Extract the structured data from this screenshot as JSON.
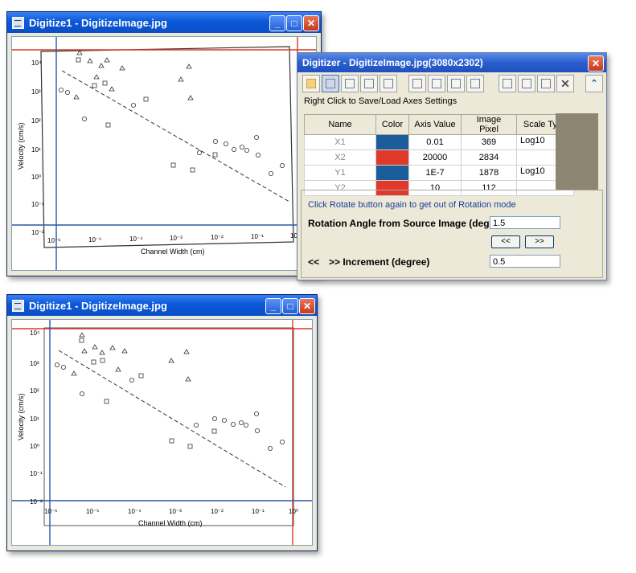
{
  "window_top": {
    "title": "Digitize1 - DigitizeImage.jpg",
    "buttons": {
      "minimize": "_",
      "maximize": "□",
      "close": "✕"
    }
  },
  "window_bottom": {
    "title": "Digitize1 - DigitizeImage.jpg",
    "buttons": {
      "minimize": "_",
      "maximize": "□",
      "close": "✕"
    }
  },
  "plot": {
    "ylabel": "Velocity (cm/s)",
    "xlabel": "Channel Width (cm)",
    "x_ticks": [
      "10⁻⁶",
      "10⁻⁵",
      "10⁻⁴",
      "10⁻³",
      "10⁻²",
      "10⁻¹",
      "10⁰"
    ],
    "y_ticks": [
      "10⁴",
      "10³",
      "10²",
      "10¹",
      "10⁰",
      "10⁻¹",
      "10⁻²"
    ],
    "colors": {
      "axis_line": "#d93a2b",
      "axis_line_blue": "#2a56a8"
    }
  },
  "digitizer": {
    "title": "Digitizer - DigitizeImage.jpg(3080x2302)",
    "close": "✕",
    "toolbar_icons": [
      "open-folder-icon",
      "digitize-arrow-icon",
      "move-axes-icon",
      "x-axis-icon",
      "y-axis-icon",
      "point-select-icon",
      "delete-icon",
      "target-icon",
      "worksheet-icon",
      "add-column-icon",
      "table-icon",
      "pick-peaks-icon",
      "cancel-icon",
      "collapse-icon"
    ],
    "hint": "Right Click to Save/Load Axes Settings",
    "table": {
      "headers": [
        "Name",
        "Color",
        "Axis Value",
        "Image Pixel",
        "Scale Type"
      ],
      "rows": [
        {
          "name": "X1",
          "color": "#1b5c9a",
          "axis_value": "0.01",
          "image_pixel": "369",
          "scale_type": "Log10"
        },
        {
          "name": "X2",
          "color": "#e0392a",
          "axis_value": "20000",
          "image_pixel": "2834",
          "scale_type": ""
        },
        {
          "name": "Y1",
          "color": "#1b5c9a",
          "axis_value": "1E-7",
          "image_pixel": "1878",
          "scale_type": "Log10"
        },
        {
          "name": "Y2",
          "color": "#e0392a",
          "axis_value": "10",
          "image_pixel": "112",
          "scale_type": ""
        }
      ]
    },
    "rotation": {
      "hint": "Click Rotate button again to get out of Rotation mode",
      "angle_label": "Rotation Angle from Source Image (degree)",
      "angle_value": "1.5",
      "prev_button": "<<",
      "next_button": ">>",
      "increment_label_prefix": "<<",
      "increment_label": ">> Increment (degree)",
      "increment_value": "0.5"
    }
  }
}
